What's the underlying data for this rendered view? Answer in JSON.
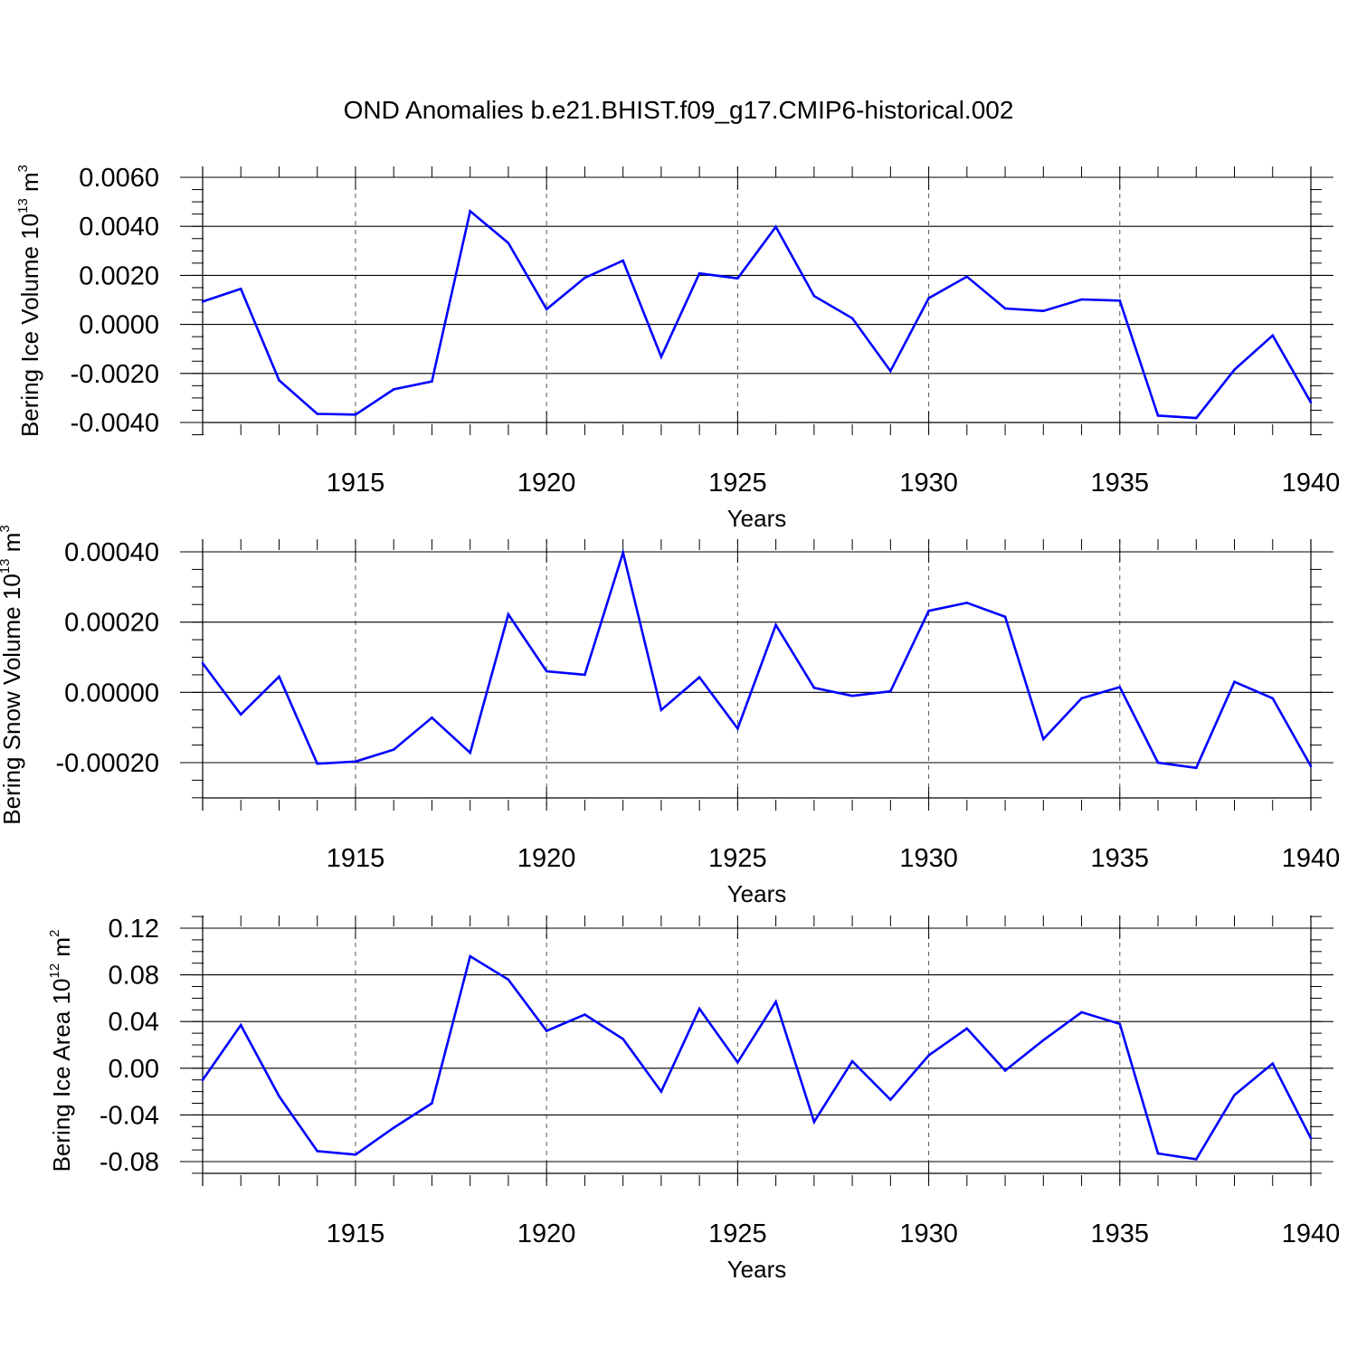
{
  "figure_title": "OND Anomalies b.e21.BHIST.f09_g17.CMIP6-historical.002",
  "chart_data": [
    {
      "type": "line",
      "title": "OND Anomalies b.e21.BHIST.f09_g17.CMIP6-historical.002",
      "xlabel": "Years",
      "ylabel": {
        "base": "Bering Ice Volume 10",
        "exp1": "13",
        "unit": " m",
        "exp2": "3"
      },
      "xlim": [
        1911,
        1940
      ],
      "ylim": [
        -0.004,
        0.006
      ],
      "x_ticks": [
        1915,
        1920,
        1925,
        1930,
        1935,
        1940
      ],
      "y_ticks": [
        -0.004,
        -0.002,
        0.0,
        0.002,
        0.004,
        0.006
      ],
      "y_tick_labels": [
        "-0.0040",
        "-0.0020",
        "0.0000",
        "0.0020",
        "0.0040",
        "0.0060"
      ],
      "y_minor_step": 0.0005,
      "grid": "vertical dashed at major x ticks",
      "line_color": "#0000ff",
      "x": [
        1911,
        1912,
        1913,
        1914,
        1915,
        1916,
        1917,
        1918,
        1919,
        1920,
        1921,
        1922,
        1923,
        1924,
        1925,
        1926,
        1927,
        1928,
        1929,
        1930,
        1931,
        1932,
        1933,
        1934,
        1935,
        1936,
        1937,
        1938,
        1939,
        1940
      ],
      "values": [
        0.00093,
        0.00145,
        -0.00228,
        -0.00365,
        -0.00368,
        -0.00265,
        -0.00233,
        0.00462,
        0.00332,
        0.00062,
        0.0019,
        0.0026,
        -0.00132,
        0.00208,
        0.00188,
        0.00398,
        0.00116,
        0.00025,
        -0.0019,
        0.00107,
        0.00195,
        0.00065,
        0.00055,
        0.00102,
        0.00097,
        -0.00372,
        -0.00382,
        -0.00185,
        -0.00045,
        -0.00318
      ]
    },
    {
      "type": "line",
      "xlabel": "Years",
      "ylabel": {
        "base": "Bering Snow Volume 10",
        "exp1": "13",
        "unit": " m",
        "exp2": "3"
      },
      "xlim": [
        1911,
        1940
      ],
      "ylim": [
        -0.0003,
        0.00043
      ],
      "x_ticks": [
        1915,
        1920,
        1925,
        1930,
        1935,
        1940
      ],
      "y_ticks": [
        -0.0002,
        0.0,
        0.0002,
        0.0004
      ],
      "y_tick_labels": [
        "-0.00020",
        "0.00000",
        "0.00020",
        "0.00040"
      ],
      "y_minor_step": 5e-05,
      "grid": "vertical dashed at major x ticks",
      "line_color": "#0000ff",
      "x": [
        1911,
        1912,
        1913,
        1914,
        1915,
        1916,
        1917,
        1918,
        1919,
        1920,
        1921,
        1922,
        1923,
        1924,
        1925,
        1926,
        1927,
        1928,
        1929,
        1930,
        1931,
        1932,
        1933,
        1934,
        1935,
        1936,
        1937,
        1938,
        1939,
        1940
      ],
      "values": [
        8.3e-05,
        -6.3e-05,
        4.5e-05,
        -0.000203,
        -0.000197,
        -0.000163,
        -7.2e-05,
        -0.000172,
        0.000222,
        6e-05,
        5e-05,
        0.000398,
        -5e-05,
        4.3e-05,
        -0.000103,
        0.000192,
        1.3e-05,
        -1e-05,
        3e-06,
        0.000232,
        0.000255,
        0.000215,
        -0.000133,
        -1.7e-05,
        1.5e-05,
        -0.0002,
        -0.000215,
        3e-05,
        -1.7e-05,
        -0.00021
      ]
    },
    {
      "type": "line",
      "xlabel": "Years",
      "ylabel": {
        "base": "Bering Ice Area 10",
        "exp1": "12",
        "unit": " m",
        "exp2": "2"
      },
      "xlim": [
        1911,
        1940
      ],
      "ylim": [
        -0.09,
        0.12
      ],
      "x_ticks": [
        1915,
        1920,
        1925,
        1930,
        1935,
        1940
      ],
      "y_ticks": [
        -0.08,
        -0.04,
        0.0,
        0.04,
        0.08,
        0.12
      ],
      "y_tick_labels": [
        "-0.08",
        "-0.04",
        "0.00",
        "0.04",
        "0.08",
        "0.12"
      ],
      "y_minor_step": 0.01,
      "grid": "vertical dashed at major x ticks",
      "line_color": "#0000ff",
      "x": [
        1911,
        1912,
        1913,
        1914,
        1915,
        1916,
        1917,
        1918,
        1919,
        1920,
        1921,
        1922,
        1923,
        1924,
        1925,
        1926,
        1927,
        1928,
        1929,
        1930,
        1931,
        1932,
        1933,
        1934,
        1935,
        1936,
        1937,
        1938,
        1939,
        1940
      ],
      "values": [
        -0.01,
        0.037,
        -0.024,
        -0.071,
        -0.074,
        -0.051,
        -0.03,
        0.096,
        0.076,
        0.032,
        0.046,
        0.025,
        -0.02,
        0.051,
        0.005,
        0.057,
        -0.046,
        0.006,
        -0.027,
        0.011,
        0.034,
        -0.002,
        0.024,
        0.048,
        0.038,
        -0.073,
        -0.078,
        -0.023,
        0.004,
        -0.06
      ]
    }
  ]
}
